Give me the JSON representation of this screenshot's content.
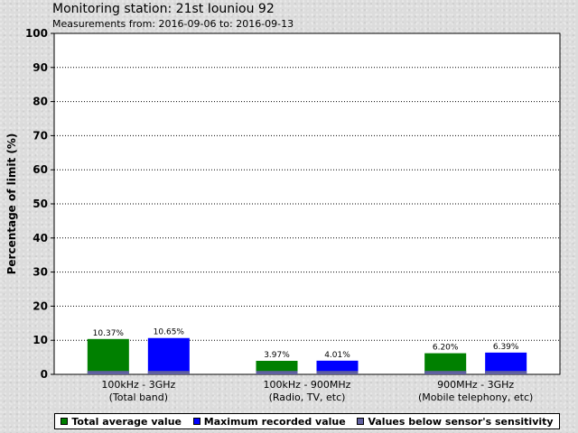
{
  "header": {
    "title": "Monitoring station: 21st Iouniou 92",
    "subtitle": "Measurements from: 2016-09-06 to: 2016-09-13"
  },
  "colors": {
    "average": "#008000",
    "maximum": "#0000ff",
    "below_sensitivity": "#6060a0"
  },
  "legend": {
    "items": [
      {
        "label": "Total average value",
        "color": "#008000"
      },
      {
        "label": "Maximum recorded value",
        "color": "#0000ff"
      },
      {
        "label": "Values below sensor's sensitivity",
        "color": "#6060a0"
      }
    ]
  },
  "chart_data": {
    "type": "bar",
    "ylabel": "Percentage of limit (%)",
    "xlabel": "",
    "ylim": [
      0,
      100
    ],
    "yticks": [
      0,
      10,
      20,
      30,
      40,
      50,
      60,
      70,
      80,
      90,
      100
    ],
    "grid": true,
    "categories": [
      [
        "100kHz - 3GHz",
        "(Total band)"
      ],
      [
        "100kHz - 900MHz",
        "(Radio, TV, etc)"
      ],
      [
        "900MHz - 3GHz",
        "(Mobile telephony, etc)"
      ]
    ],
    "series": [
      {
        "name": "Total average value",
        "values": [
          10.37,
          3.97,
          6.2
        ],
        "labels": [
          "10.37%",
          "3.97%",
          "6.20%"
        ]
      },
      {
        "name": "Maximum recorded value",
        "values": [
          10.65,
          4.01,
          6.39
        ],
        "labels": [
          "10.65%",
          "4.01%",
          "6.39%"
        ]
      }
    ],
    "below_sensitivity": 1
  }
}
